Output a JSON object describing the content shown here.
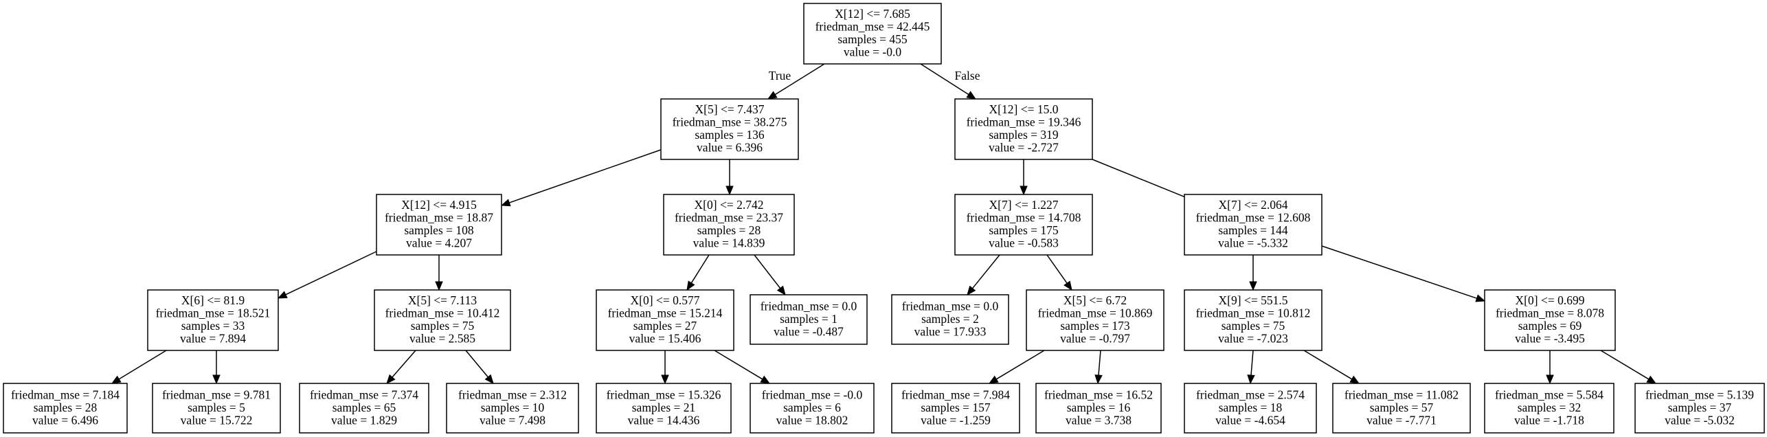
{
  "tree": {
    "nodes": [
      {
        "id": "n0",
        "lines": [
          "X[12] <= 7.685",
          "friedman_mse = 42.445",
          "samples = 455",
          "value = -0.0"
        ]
      },
      {
        "id": "n1",
        "lines": [
          "X[5] <= 7.437",
          "friedman_mse = 38.275",
          "samples = 136",
          "value = 6.396"
        ]
      },
      {
        "id": "n2",
        "lines": [
          "X[12] <= 15.0",
          "friedman_mse = 19.346",
          "samples = 319",
          "value = -2.727"
        ]
      },
      {
        "id": "n3",
        "lines": [
          "X[12] <= 4.915",
          "friedman_mse = 18.87",
          "samples = 108",
          "value = 4.207"
        ]
      },
      {
        "id": "n4",
        "lines": [
          "X[0] <= 2.742",
          "friedman_mse = 23.37",
          "samples = 28",
          "value = 14.839"
        ]
      },
      {
        "id": "n5",
        "lines": [
          "X[7] <= 1.227",
          "friedman_mse = 14.708",
          "samples = 175",
          "value = -0.583"
        ]
      },
      {
        "id": "n6",
        "lines": [
          "X[7] <= 2.064",
          "friedman_mse = 12.608",
          "samples = 144",
          "value = -5.332"
        ]
      },
      {
        "id": "n7",
        "lines": [
          "X[6] <= 81.9",
          "friedman_mse = 18.521",
          "samples = 33",
          "value = 7.894"
        ]
      },
      {
        "id": "n8",
        "lines": [
          "X[5] <= 7.113",
          "friedman_mse = 10.412",
          "samples = 75",
          "value = 2.585"
        ]
      },
      {
        "id": "n9",
        "lines": [
          "X[0] <= 0.577",
          "friedman_mse = 15.214",
          "samples = 27",
          "value = 15.406"
        ]
      },
      {
        "id": "n10",
        "lines": [
          "friedman_mse = 0.0",
          "samples = 1",
          "value = -0.487"
        ]
      },
      {
        "id": "n11",
        "lines": [
          "friedman_mse = 0.0",
          "samples = 2",
          "value = 17.933"
        ]
      },
      {
        "id": "n12",
        "lines": [
          "X[5] <= 6.72",
          "friedman_mse = 10.869",
          "samples = 173",
          "value = -0.797"
        ]
      },
      {
        "id": "n13",
        "lines": [
          "X[9] <= 551.5",
          "friedman_mse = 10.812",
          "samples = 75",
          "value = -7.023"
        ]
      },
      {
        "id": "n14",
        "lines": [
          "X[0] <= 0.699",
          "friedman_mse = 8.078",
          "samples = 69",
          "value = -3.495"
        ]
      },
      {
        "id": "n15",
        "lines": [
          "friedman_mse = 7.184",
          "samples = 28",
          "value = 6.496"
        ]
      },
      {
        "id": "n16",
        "lines": [
          "friedman_mse = 9.781",
          "samples = 5",
          "value = 15.722"
        ]
      },
      {
        "id": "n17",
        "lines": [
          "friedman_mse = 7.374",
          "samples = 65",
          "value = 1.829"
        ]
      },
      {
        "id": "n18",
        "lines": [
          "friedman_mse = 2.312",
          "samples = 10",
          "value = 7.498"
        ]
      },
      {
        "id": "n19",
        "lines": [
          "friedman_mse = 15.326",
          "samples = 21",
          "value = 14.436"
        ]
      },
      {
        "id": "n20",
        "lines": [
          "friedman_mse = -0.0",
          "samples = 6",
          "value = 18.802"
        ]
      },
      {
        "id": "n21",
        "lines": [
          "friedman_mse = 7.984",
          "samples = 157",
          "value = -1.259"
        ]
      },
      {
        "id": "n22",
        "lines": [
          "friedman_mse = 16.52",
          "samples = 16",
          "value = 3.738"
        ]
      },
      {
        "id": "n23",
        "lines": [
          "friedman_mse = 2.574",
          "samples = 18",
          "value = -4.654"
        ]
      },
      {
        "id": "n24",
        "lines": [
          "friedman_mse = 11.082",
          "samples = 57",
          "value = -7.771"
        ]
      },
      {
        "id": "n25",
        "lines": [
          "friedman_mse = 5.584",
          "samples = 32",
          "value = -1.718"
        ]
      },
      {
        "id": "n26",
        "lines": [
          "friedman_mse = 5.139",
          "samples = 37",
          "value = -5.032"
        ]
      }
    ],
    "edges": [
      {
        "from": "n0",
        "to": "n1",
        "label": "True"
      },
      {
        "from": "n0",
        "to": "n2",
        "label": "False"
      },
      {
        "from": "n1",
        "to": "n3"
      },
      {
        "from": "n1",
        "to": "n4"
      },
      {
        "from": "n2",
        "to": "n5"
      },
      {
        "from": "n2",
        "to": "n6"
      },
      {
        "from": "n3",
        "to": "n7"
      },
      {
        "from": "n3",
        "to": "n8"
      },
      {
        "from": "n4",
        "to": "n9"
      },
      {
        "from": "n4",
        "to": "n10"
      },
      {
        "from": "n5",
        "to": "n11"
      },
      {
        "from": "n5",
        "to": "n12"
      },
      {
        "from": "n6",
        "to": "n13"
      },
      {
        "from": "n6",
        "to": "n14"
      },
      {
        "from": "n7",
        "to": "n15"
      },
      {
        "from": "n7",
        "to": "n16"
      },
      {
        "from": "n8",
        "to": "n17"
      },
      {
        "from": "n8",
        "to": "n18"
      },
      {
        "from": "n9",
        "to": "n19"
      },
      {
        "from": "n9",
        "to": "n20"
      },
      {
        "from": "n12",
        "to": "n21"
      },
      {
        "from": "n12",
        "to": "n22"
      },
      {
        "from": "n13",
        "to": "n23"
      },
      {
        "from": "n13",
        "to": "n24"
      },
      {
        "from": "n14",
        "to": "n25"
      },
      {
        "from": "n14",
        "to": "n26"
      }
    ]
  }
}
